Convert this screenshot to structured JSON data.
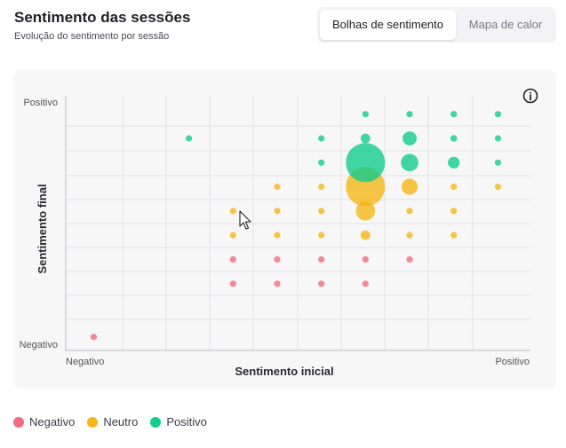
{
  "header": {
    "title": "Sentimento das sessões",
    "subtitle": "Evolução do sentimento por sessão"
  },
  "toggle": {
    "bubbles_label": "Bolhas de sentimento",
    "heatmap_label": "Mapa de calor",
    "selected": "Bolhas de sentimento"
  },
  "colors": {
    "negative": "#f26b80",
    "neutral": "#f5b718",
    "positive": "#12cc8c"
  },
  "chart_data": {
    "type": "scatter",
    "variant": "bubble",
    "xlabel": "Sentimento inicial",
    "ylabel": "Sentimento final",
    "x_tick_labels": {
      "min": "Negativo",
      "max": "Positivo"
    },
    "y_tick_labels": {
      "min": "Negativo",
      "max": "Positivo"
    },
    "xlim": [
      -1,
      1
    ],
    "ylim": [
      -1,
      1
    ],
    "grid": true,
    "legend_position": "bottom-left",
    "series": [
      {
        "name": "Negativo",
        "color": "#f26b80",
        "points": [
          {
            "x": -0.88,
            "y": -0.94,
            "size": 1
          },
          {
            "x": -0.28,
            "y": -0.5,
            "size": 1
          },
          {
            "x": -0.28,
            "y": -0.3,
            "size": 1
          },
          {
            "x": -0.09,
            "y": -0.5,
            "size": 1
          },
          {
            "x": -0.09,
            "y": -0.3,
            "size": 1
          },
          {
            "x": 0.1,
            "y": -0.5,
            "size": 1
          },
          {
            "x": 0.1,
            "y": -0.3,
            "size": 1
          },
          {
            "x": 0.29,
            "y": -0.5,
            "size": 1
          },
          {
            "x": 0.29,
            "y": -0.3,
            "size": 1
          },
          {
            "x": 0.48,
            "y": -0.3,
            "size": 1
          }
        ]
      },
      {
        "name": "Neutro",
        "color": "#f5b718",
        "points": [
          {
            "x": -0.28,
            "y": -0.1,
            "size": 1
          },
          {
            "x": -0.28,
            "y": 0.1,
            "size": 1
          },
          {
            "x": -0.09,
            "y": -0.1,
            "size": 1
          },
          {
            "x": -0.09,
            "y": 0.1,
            "size": 1
          },
          {
            "x": -0.09,
            "y": 0.3,
            "size": 1
          },
          {
            "x": 0.1,
            "y": -0.1,
            "size": 1.5
          },
          {
            "x": 0.1,
            "y": 0.1,
            "size": 1.5
          },
          {
            "x": 0.1,
            "y": 0.3,
            "size": 1.5
          },
          {
            "x": 0.29,
            "y": -0.1,
            "size": 6
          },
          {
            "x": 0.29,
            "y": 0.1,
            "size": 24
          },
          {
            "x": 0.29,
            "y": 0.3,
            "size": 100
          },
          {
            "x": 0.48,
            "y": -0.1,
            "size": 1.5
          },
          {
            "x": 0.48,
            "y": 0.1,
            "size": 1.5
          },
          {
            "x": 0.48,
            "y": 0.3,
            "size": 17
          },
          {
            "x": 0.67,
            "y": -0.1,
            "size": 1
          },
          {
            "x": 0.67,
            "y": 0.1,
            "size": 1
          },
          {
            "x": 0.67,
            "y": 0.3,
            "size": 1.5
          },
          {
            "x": 0.86,
            "y": 0.3,
            "size": 1.5
          }
        ]
      },
      {
        "name": "Positivo",
        "color": "#12cc8c",
        "points": [
          {
            "x": -0.47,
            "y": 0.7,
            "size": 1.5
          },
          {
            "x": 0.1,
            "y": 0.5,
            "size": 1.5
          },
          {
            "x": 0.1,
            "y": 0.7,
            "size": 1.5
          },
          {
            "x": 0.29,
            "y": 0.5,
            "size": 100
          },
          {
            "x": 0.29,
            "y": 0.7,
            "size": 6
          },
          {
            "x": 0.29,
            "y": 0.9,
            "size": 1.5
          },
          {
            "x": 0.48,
            "y": 0.5,
            "size": 20
          },
          {
            "x": 0.48,
            "y": 0.7,
            "size": 13
          },
          {
            "x": 0.48,
            "y": 0.9,
            "size": 2
          },
          {
            "x": 0.67,
            "y": 0.5,
            "size": 9
          },
          {
            "x": 0.67,
            "y": 0.7,
            "size": 3
          },
          {
            "x": 0.67,
            "y": 0.9,
            "size": 2
          },
          {
            "x": 0.86,
            "y": 0.5,
            "size": 1.5
          },
          {
            "x": 0.86,
            "y": 0.7,
            "size": 1.5
          },
          {
            "x": 0.86,
            "y": 0.9,
            "size": 1.5
          }
        ]
      }
    ]
  },
  "legend": [
    {
      "label": "Negativo",
      "color": "#f26b80"
    },
    {
      "label": "Neutro",
      "color": "#f5b718"
    },
    {
      "label": "Positivo",
      "color": "#12cc8c"
    }
  ],
  "icons": {
    "info": "info-icon",
    "cursor": "mouse-pointer-icon"
  }
}
